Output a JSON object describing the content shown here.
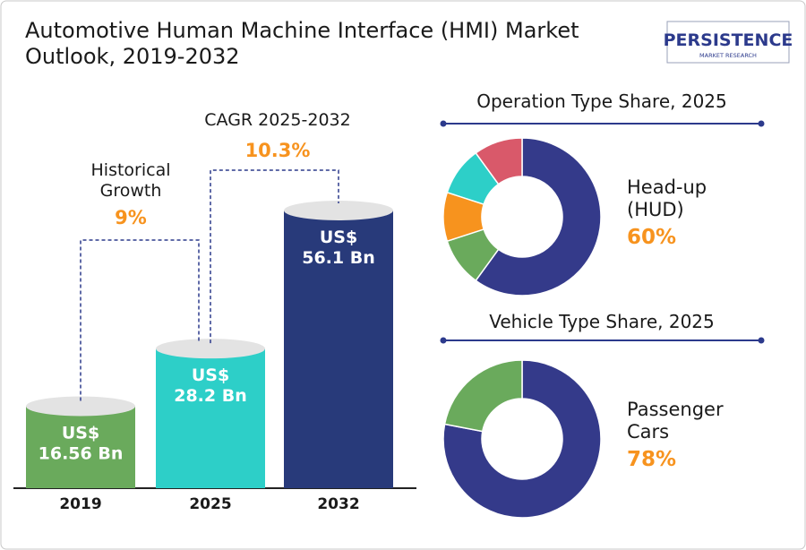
{
  "title": "Automotive Human Machine Interface (HMI) Market\nOutlook, 2019-2032",
  "logo": {
    "name": "PERSISTENCE",
    "tagline": "MARKET RESEARCH"
  },
  "chart_data": [
    {
      "type": "bar",
      "categories": [
        "2019",
        "2025",
        "2032"
      ],
      "values": [
        16.56,
        28.2,
        56.1
      ],
      "value_labels": [
        "US$\n16.56 Bn",
        "US$\n28.2 Bn",
        "US$\n56.1 Bn"
      ],
      "colors": [
        "#6aaa5c",
        "#2dcfc8",
        "#283a7a"
      ],
      "annotations": [
        {
          "text": "Historical\nGrowth",
          "value_label": "9%"
        },
        {
          "text": "CAGR 2025-2032",
          "value_label": "10.3%"
        }
      ]
    },
    {
      "type": "pie",
      "title": "Operation Type Share, 2025",
      "categories": [
        "Head-up\n(HUD)",
        null,
        null,
        null,
        null
      ],
      "values": [
        60,
        10,
        10,
        10,
        10
      ],
      "value_labels": [
        "60%",
        null,
        null,
        null,
        null
      ],
      "colors": [
        "#343a8a",
        "#6aaa5c",
        "#f7931e",
        "#2dcfc8",
        "#d9596a"
      ]
    },
    {
      "type": "pie",
      "title": "Vehicle Type Share, 2025",
      "categories": [
        "Passenger\nCars",
        null
      ],
      "values": [
        78,
        22
      ],
      "value_labels": [
        "78%",
        null
      ],
      "colors": [
        "#343a8a",
        "#6aaa5c"
      ]
    }
  ]
}
